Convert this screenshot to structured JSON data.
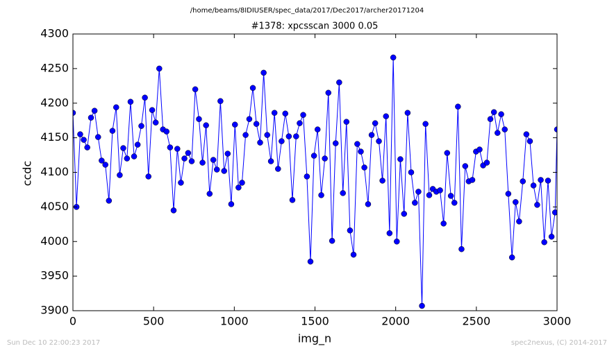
{
  "chart_data": {
    "type": "line",
    "suptitle": "/home/beams/8IDIUSER/spec_data/2017/Dec2017/archer20171204",
    "title": "#1378: xpcsscan 3000 0.05",
    "xlabel": "img_n",
    "ylabel": "ccdc",
    "footer_left": "Sun Dec 10 22:00:23 2017",
    "footer_right": "spec2nexus, (C) 2014-2017",
    "xlim": [
      0,
      3000
    ],
    "xticks": [
      0,
      500,
      1000,
      1500,
      2000,
      2500,
      3000
    ],
    "ylim": [
      3900,
      4300
    ],
    "yticks": [
      3900,
      3950,
      4000,
      4050,
      4100,
      4150,
      4200,
      4250,
      4300
    ],
    "grid": false,
    "x": [
      0,
      22,
      45,
      67,
      89,
      112,
      134,
      156,
      178,
      201,
      223,
      245,
      268,
      290,
      312,
      335,
      357,
      379,
      401,
      424,
      446,
      468,
      491,
      513,
      535,
      558,
      580,
      602,
      624,
      647,
      669,
      691,
      714,
      736,
      758,
      781,
      803,
      825,
      847,
      870,
      892,
      914,
      937,
      959,
      981,
      1004,
      1026,
      1048,
      1070,
      1093,
      1115,
      1137,
      1160,
      1182,
      1204,
      1227,
      1249,
      1271,
      1293,
      1316,
      1338,
      1360,
      1383,
      1405,
      1427,
      1450,
      1472,
      1494,
      1516,
      1539,
      1561,
      1583,
      1606,
      1628,
      1650,
      1673,
      1695,
      1717,
      1739,
      1762,
      1784,
      1806,
      1829,
      1851,
      1873,
      1896,
      1918,
      1940,
      1962,
      1985,
      2007,
      2029,
      2052,
      2074,
      2096,
      2119,
      2141,
      2163,
      2185,
      2208,
      2230,
      2252,
      2275,
      2297,
      2319,
      2342,
      2364,
      2386,
      2408,
      2431,
      2453,
      2475,
      2498,
      2520,
      2542,
      2565,
      2587,
      2609,
      2631,
      2654,
      2676,
      2698,
      2721,
      2743,
      2765,
      2788,
      2810,
      2832,
      2854,
      2877,
      2899,
      2921,
      2944,
      2966,
      2988,
      3000
    ],
    "series": [
      {
        "color": "#0000ff",
        "values": [
          4186,
          4050,
          4155,
          4147,
          4136,
          4179,
          4189,
          4151,
          4117,
          4111,
          4059,
          4160,
          4194,
          4096,
          4135,
          4120,
          4202,
          4123,
          4140,
          4167,
          4208,
          4094,
          4190,
          4172,
          4250,
          4162,
          4159,
          4136,
          4045,
          4134,
          4085,
          4120,
          4128,
          4116,
          4220,
          4177,
          4114,
          4168,
          4069,
          4118,
          4104,
          4203,
          4102,
          4127,
          4054,
          4169,
          4078,
          4085,
          4154,
          4177,
          4222,
          4170,
          4143,
          4244,
          4154,
          4116,
          4186,
          4105,
          4145,
          4185,
          4152,
          4060,
          4152,
          4171,
          4183,
          4094,
          3971,
          4124,
          4162,
          4067,
          4120,
          4215,
          4001,
          4142,
          4230,
          4070,
          4173,
          4016,
          3981,
          4141,
          4130,
          4107,
          4054,
          4154,
          4171,
          4145,
          4088,
          4181,
          4012,
          4266,
          4000,
          4119,
          4040,
          4186,
          4100,
          4056,
          4072,
          3907,
          4170,
          4067,
          4076,
          4072,
          4074,
          4026,
          4128,
          4066,
          4056,
          4195,
          3989,
          4109,
          4087,
          4089,
          4130,
          4133,
          4110,
          4114,
          4177,
          4187,
          4157,
          4184,
          4162,
          4069,
          3977,
          4057,
          4029,
          4087,
          4155,
          4145,
          4081,
          4053,
          4089,
          3999,
          4088,
          4007,
          4042,
          4162
        ]
      }
    ]
  }
}
